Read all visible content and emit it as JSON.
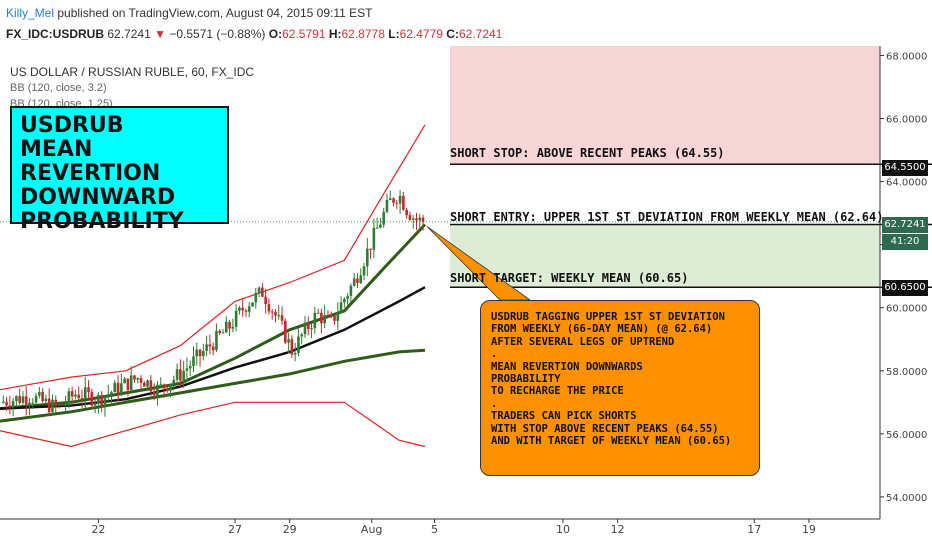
{
  "header": {
    "author": "Killy_Mel",
    "published_text": "published on TradingView.com, August 04, 2015 09:11 EST",
    "symbol": "FX_IDC:USDRUB",
    "last_price": "62.7241",
    "change_text": "−0.5571 (−0.88%)",
    "open_label": "O:",
    "open_value": "62.5791",
    "high_label": "H:",
    "high_value": "62.8778",
    "low_label": "L:",
    "low_value": "62.4779",
    "close_label": "C:",
    "close_value": "62.7241"
  },
  "chart_info": {
    "title": "US DOLLAR / RUSSIAN RUBLE, 60, FX_IDC",
    "indicator_1": "BB (120, close, 3.2)",
    "indicator_2": "BB (120, close, 1.25)"
  },
  "title_box": {
    "line1": "USDRUB",
    "line2": "MEAN REVERTION",
    "line3": "DOWNWARD",
    "line4": "PROBABILITY"
  },
  "zones": {
    "stop_label": "SHORT STOP: ABOVE RECENT PEAKS (64.55)",
    "entry_label": "SHORT ENTRY: UPPER 1ST ST DEVIATION FROM WEEKLY MEAN (62.64)",
    "target_label": "SHORT TARGET: WEEKLY MEAN (60.65)"
  },
  "callout": {
    "lines": [
      "USDRUB TAGGING UPPER 1ST ST DEVIATION",
      "FROM WEEKLY (66-DAY MEAN) (@ 62.64)",
      "AFTER SEVERAL LEGS OF UPTREND",
      ".",
      "MEAN REVERTION DOWNWARDS",
      "PROBABILITY",
      "TO RECHARGE THE PRICE",
      ".",
      "TRADERS CAN PICK SHORTS",
      "WITH STOP ABOVE RECENT PEAKS (64.55)",
      "AND WITH TARGET OF WEEKLY MEAN (60.65)"
    ]
  },
  "price_tags": {
    "stop": "64.5500",
    "current": "62.7241",
    "countdown": "41:20",
    "target": "60.6500"
  },
  "colors": {
    "up_candle": "#2e7d32",
    "down_candle": "#c62828",
    "bb_outer": "#e02020",
    "bb_inner": "#2e5c1a",
    "mean_line": "#111111",
    "stop_zone": "#f5d5d5",
    "target_zone": "#dcecd5",
    "callout_bg": "#ff9100",
    "title_box_bg": "#00ffff"
  },
  "chart_data": {
    "type": "candlestick",
    "title": "US DOLLAR / RUSSIAN RUBLE, 60, FX_IDC",
    "y_ticks": [
      54,
      56,
      58,
      60,
      62,
      64,
      66,
      68
    ],
    "y_tick_labels": [
      "54.0000",
      "56.0000",
      "58.0000",
      "60.0000",
      "62.0000",
      "64.0000",
      "66.0000",
      "68.0000"
    ],
    "ylim": [
      53.3,
      68.3
    ],
    "x_labels": [
      "22",
      "27",
      "29",
      "Aug",
      "5",
      "10",
      "12",
      "17",
      "19"
    ],
    "x_label_days": [
      -11,
      -6,
      -4,
      -1,
      1.3,
      6,
      8,
      13,
      15
    ],
    "xlim": [
      -14.6,
      17.6
    ],
    "data_end_day": 0.95,
    "levels": {
      "short_stop": 64.55,
      "short_entry": 62.64,
      "short_target": 60.65,
      "last": 62.7241
    },
    "close_path": [
      [
        -14.6,
        57.0
      ],
      [
        -13.5,
        57.2
      ],
      [
        -12.5,
        56.8
      ],
      [
        -11.8,
        57.3
      ],
      [
        -11.0,
        57.1
      ],
      [
        -10.2,
        57.5
      ],
      [
        -9.5,
        57.8
      ],
      [
        -8.8,
        57.4
      ],
      [
        -8.0,
        57.9
      ],
      [
        -7.4,
        58.4
      ],
      [
        -6.8,
        58.9
      ],
      [
        -6.2,
        59.4
      ],
      [
        -5.6,
        60.1
      ],
      [
        -5.0,
        60.5
      ],
      [
        -4.6,
        59.9
      ],
      [
        -4.2,
        59.2
      ],
      [
        -3.9,
        58.6
      ],
      [
        -3.5,
        59.2
      ],
      [
        -3.0,
        59.8
      ],
      [
        -2.5,
        59.5
      ],
      [
        -2.0,
        60.3
      ],
      [
        -1.6,
        60.9
      ],
      [
        -1.2,
        61.7
      ],
      [
        -0.9,
        62.3
      ],
      [
        -0.6,
        62.9
      ],
      [
        -0.3,
        63.4
      ],
      [
        0.0,
        63.6
      ],
      [
        0.3,
        63.1
      ],
      [
        0.6,
        62.8
      ],
      [
        0.95,
        62.72
      ]
    ],
    "series": [
      {
        "name": "BB (120, close, 3.2) upper",
        "points": [
          [
            -14.6,
            57.4
          ],
          [
            -12,
            57.8
          ],
          [
            -10,
            58.0
          ],
          [
            -8,
            58.8
          ],
          [
            -6,
            60.2
          ],
          [
            -4,
            60.8
          ],
          [
            -2,
            61.5
          ],
          [
            -0.5,
            63.7
          ],
          [
            0.95,
            65.8
          ]
        ]
      },
      {
        "name": "BB (120, close, 3.2) lower",
        "points": [
          [
            -14.6,
            56.1
          ],
          [
            -12,
            55.6
          ],
          [
            -10,
            56.1
          ],
          [
            -8,
            56.6
          ],
          [
            -6,
            57.0
          ],
          [
            -4,
            57.0
          ],
          [
            -2,
            57.0
          ],
          [
            -1,
            56.4
          ],
          [
            0,
            55.8
          ],
          [
            0.95,
            55.6
          ]
        ]
      },
      {
        "name": "BB (120, close, 1.25) upper",
        "points": [
          [
            -14.6,
            56.8
          ],
          [
            -12,
            57.0
          ],
          [
            -10,
            57.3
          ],
          [
            -8,
            57.6
          ],
          [
            -6,
            58.4
          ],
          [
            -4,
            59.3
          ],
          [
            -2,
            59.9
          ],
          [
            -0.5,
            61.3
          ],
          [
            0.95,
            62.64
          ]
        ]
      },
      {
        "name": "BB (120, close, 1.25) lower",
        "points": [
          [
            -14.6,
            56.4
          ],
          [
            -12,
            56.7
          ],
          [
            -10,
            57.0
          ],
          [
            -8,
            57.3
          ],
          [
            -6,
            57.6
          ],
          [
            -4,
            57.9
          ],
          [
            -2,
            58.3
          ],
          [
            0,
            58.6
          ],
          [
            0.95,
            58.65
          ]
        ]
      },
      {
        "name": "BB (120, close, 1.25) basis",
        "points": [
          [
            -14.6,
            56.8
          ],
          [
            -12,
            56.9
          ],
          [
            -10,
            57.1
          ],
          [
            -8,
            57.5
          ],
          [
            -6,
            58.1
          ],
          [
            -4,
            58.6
          ],
          [
            -2,
            59.3
          ],
          [
            0,
            60.2
          ],
          [
            0.95,
            60.65
          ]
        ]
      }
    ]
  }
}
